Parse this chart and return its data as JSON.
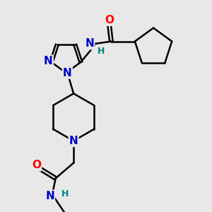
{
  "bg_color": "#e8e8e8",
  "atom_colors": {
    "N": "#0000cc",
    "O": "#ff0000",
    "C": "#000000",
    "H": "#008080"
  },
  "bond_color": "#000000",
  "bond_width": 1.8,
  "font_size_N": 11,
  "font_size_O": 11,
  "font_size_H": 9
}
